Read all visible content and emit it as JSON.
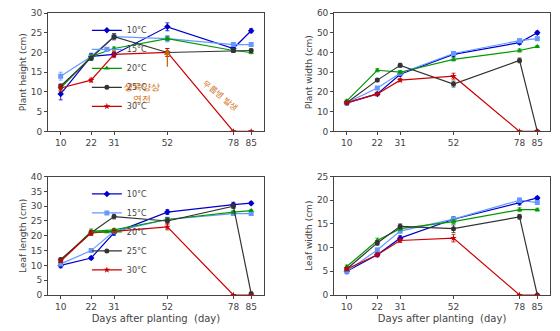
{
  "chart_data": [
    {
      "type": "line",
      "ylabel": "Plant height (cm)",
      "x": [
        10,
        22,
        31,
        52,
        78,
        85
      ],
      "xlim": [
        5,
        90
      ],
      "xticks": [
        10,
        22,
        31,
        52,
        78,
        85
      ],
      "ylim": [
        0,
        30
      ],
      "yticks": [
        0,
        5,
        10,
        15,
        20,
        25,
        30
      ],
      "grid": false,
      "series": [
        {
          "name": "10°C",
          "color": "#0000CC",
          "marker": "diamond",
          "values": [
            9.5,
            19.0,
            19.5,
            26.5,
            21.0,
            25.5
          ],
          "error": [
            1.5,
            0.8,
            0.5,
            1.0,
            0.8,
            0.5
          ]
        },
        {
          "name": "15°C",
          "color": "#6699FF",
          "marker": "square",
          "values": [
            14.0,
            19.0,
            24.0,
            23.5,
            22.0,
            22.0
          ],
          "error": [
            1.0,
            0.5,
            0.6,
            0.8,
            0.5,
            0.5
          ]
        },
        {
          "name": "20°C",
          "color": "#009900",
          "marker": "triangle-up",
          "values": [
            11.0,
            19.0,
            21.0,
            23.5,
            20.5,
            20.0
          ],
          "error": [
            0.8,
            0.5,
            0.4,
            0.5,
            0.5,
            0.3
          ]
        },
        {
          "name": "25°C",
          "color": "#333333",
          "marker": "circle",
          "values": [
            11.5,
            18.5,
            24.0,
            20.0,
            20.5,
            20.5
          ],
          "error": [
            0.5,
            0.4,
            0.8,
            1.0,
            0.5,
            0.4
          ]
        },
        {
          "name": "30°C",
          "color": "#CC0000",
          "marker": "star",
          "values": [
            11.0,
            13.0,
            19.5,
            20.0,
            0.0,
            0.0
          ],
          "error": [
            0.8,
            0.5,
            0.8,
            1.0,
            0.0,
            0.0
          ]
        }
      ],
      "annotations": [
        {
          "arrow": true,
          "x": 52,
          "y": 21,
          "from_y": 16,
          "color": "#CC6600"
        },
        {
          "text": "생육양상\n연전",
          "x": 42,
          "y": 13,
          "color": "#CC6600"
        },
        {
          "text": "무름병 발생",
          "x": 64,
          "y": 9,
          "color": "#CC6600"
        }
      ]
    },
    {
      "type": "line",
      "ylabel": "Plant width (cm)",
      "legend": "upper left",
      "x": [
        10,
        22,
        31,
        52,
        78,
        85
      ],
      "xlim": [
        5,
        90
      ],
      "xticks": [
        10,
        22,
        31,
        52,
        78,
        85
      ],
      "ylim": [
        0,
        60
      ],
      "yticks": [
        0,
        10,
        20,
        30,
        40,
        50,
        60
      ],
      "grid": false,
      "series": [
        {
          "name": "10°C",
          "color": "#0000CC",
          "marker": "diamond",
          "values": [
            14.5,
            19.0,
            29.0,
            39.0,
            45.0,
            50.0
          ],
          "error": [
            1.0,
            0.8,
            1.0,
            1.2,
            1.0,
            0.8
          ]
        },
        {
          "name": "15°C",
          "color": "#6699FF",
          "marker": "square",
          "values": [
            14.5,
            22.0,
            29.5,
            39.5,
            46.0,
            47.0
          ],
          "error": [
            0.8,
            0.5,
            0.8,
            1.0,
            1.0,
            0.8
          ]
        },
        {
          "name": "20°C",
          "color": "#009900",
          "marker": "triangle-up",
          "values": [
            15.5,
            31.0,
            30.0,
            36.5,
            41.0,
            43.0
          ],
          "error": [
            0.5,
            0.8,
            0.8,
            0.8,
            0.8,
            0.5
          ]
        },
        {
          "name": "25°C",
          "color": "#333333",
          "marker": "circle",
          "values": [
            14.5,
            26.0,
            33.5,
            24.0,
            36.0,
            0.0
          ],
          "error": [
            0.5,
            0.8,
            1.0,
            1.5,
            1.2,
            0.0
          ]
        },
        {
          "name": "30°C",
          "color": "#CC0000",
          "marker": "star",
          "values": [
            14.5,
            19.0,
            26.0,
            28.0,
            0.0,
            0.0
          ],
          "error": [
            0.5,
            0.5,
            0.8,
            1.5,
            0.0,
            0.0
          ]
        }
      ]
    },
    {
      "type": "line",
      "ylabel": "Leaf length (cm)",
      "xlabel": "Days after planting  (day)",
      "x": [
        10,
        22,
        31,
        52,
        78,
        85
      ],
      "xlim": [
        5,
        90
      ],
      "xticks": [
        10,
        22,
        31,
        52,
        78,
        85
      ],
      "ylim": [
        0,
        40
      ],
      "yticks": [
        0,
        5,
        10,
        15,
        20,
        25,
        30,
        35,
        40
      ],
      "grid": false,
      "series": [
        {
          "name": "10°C",
          "color": "#0000CC",
          "marker": "diamond",
          "values": [
            10.0,
            12.5,
            21.0,
            28.0,
            30.5,
            31.0
          ],
          "error": [
            0.8,
            0.5,
            0.8,
            0.8,
            0.8,
            0.5
          ]
        },
        {
          "name": "15°C",
          "color": "#6699FF",
          "marker": "square",
          "values": [
            10.5,
            15.0,
            21.5,
            25.5,
            27.5,
            27.5
          ],
          "error": [
            0.5,
            0.5,
            0.8,
            0.8,
            0.5,
            0.4
          ]
        },
        {
          "name": "20°C",
          "color": "#009900",
          "marker": "triangle-up",
          "values": [
            11.5,
            21.5,
            22.0,
            25.5,
            28.0,
            28.5
          ],
          "error": [
            0.5,
            0.8,
            0.5,
            0.5,
            0.5,
            0.3
          ]
        },
        {
          "name": "25°C",
          "color": "#333333",
          "marker": "circle",
          "values": [
            12.0,
            21.0,
            26.5,
            25.0,
            30.0,
            0.5
          ],
          "error": [
            0.5,
            0.8,
            0.8,
            1.0,
            0.8,
            0.0
          ]
        },
        {
          "name": "30°C",
          "color": "#CC0000",
          "marker": "star",
          "values": [
            11.5,
            21.0,
            21.5,
            23.0,
            0.0,
            0.0
          ],
          "error": [
            0.5,
            0.8,
            0.5,
            1.0,
            0.0,
            0.0
          ]
        }
      ]
    },
    {
      "type": "line",
      "ylabel": "Leaf width (cm)",
      "xlabel": "Days after planting  (day)",
      "legend": "upper left",
      "x": [
        10,
        22,
        31,
        52,
        78,
        85
      ],
      "xlim": [
        5,
        90
      ],
      "xticks": [
        10,
        22,
        31,
        52,
        78,
        85
      ],
      "ylim": [
        0,
        25
      ],
      "yticks": [
        0,
        5,
        10,
        15,
        20,
        25
      ],
      "grid": false,
      "series": [
        {
          "name": "10°C",
          "color": "#0000CC",
          "marker": "diamond",
          "values": [
            5.0,
            8.5,
            12.0,
            16.0,
            19.5,
            20.5
          ],
          "error": [
            0.5,
            0.4,
            0.5,
            0.5,
            0.5,
            0.3
          ]
        },
        {
          "name": "15°C",
          "color": "#6699FF",
          "marker": "square",
          "values": [
            5.0,
            9.5,
            13.5,
            16.0,
            20.0,
            19.5
          ],
          "error": [
            0.3,
            0.4,
            0.5,
            0.5,
            0.5,
            0.3
          ]
        },
        {
          "name": "20°C",
          "color": "#009900",
          "marker": "triangle-up",
          "values": [
            6.0,
            11.5,
            14.0,
            15.5,
            18.0,
            18.0
          ],
          "error": [
            0.3,
            0.5,
            0.4,
            0.4,
            0.4,
            0.3
          ]
        },
        {
          "name": "25°C",
          "color": "#333333",
          "marker": "circle",
          "values": [
            5.5,
            11.0,
            14.5,
            14.0,
            16.5,
            0.0
          ],
          "error": [
            0.3,
            0.5,
            0.5,
            0.8,
            0.5,
            0.0
          ]
        },
        {
          "name": "30°C",
          "color": "#CC0000",
          "marker": "star",
          "values": [
            5.5,
            8.5,
            11.5,
            12.0,
            0.0,
            0.0
          ],
          "error": [
            0.3,
            0.4,
            0.4,
            0.8,
            0.0,
            0.0
          ]
        }
      ]
    }
  ]
}
